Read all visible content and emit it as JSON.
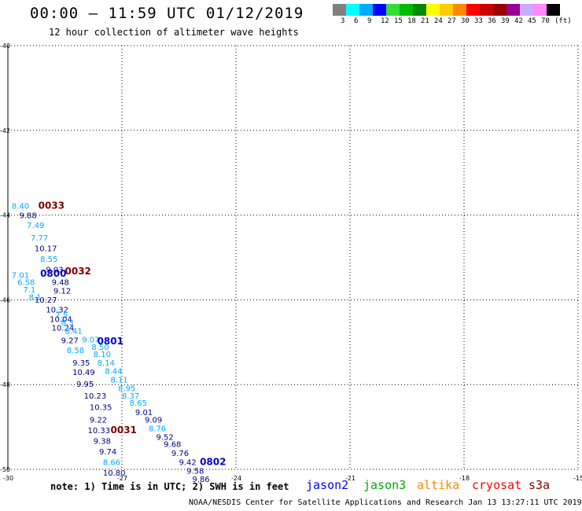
{
  "header": {
    "title": "00:00 – 11:59 UTC 01/12/2019",
    "subtitle": "12 hour collection of altimeter wave heights"
  },
  "legend": {
    "colors": [
      "#808080",
      "#00ffff",
      "#00aaff",
      "#0000ff",
      "#33dd33",
      "#00bb00",
      "#008800",
      "#ffff00",
      "#ffcc00",
      "#ff8800",
      "#ff0000",
      "#cc0000",
      "#990000",
      "#990099",
      "#ccaaff",
      "#ff88ff",
      "#000000"
    ],
    "labels": [
      "3",
      "6",
      "9",
      "12",
      "15",
      "18",
      "21",
      "24",
      "27",
      "30",
      "33",
      "36",
      "39",
      "42",
      "45",
      "70",
      "(ft)"
    ]
  },
  "map": {
    "lat_ticks": [
      "-40",
      "-42",
      "-44",
      "-46",
      "-48",
      "-50"
    ],
    "lon_ticks": [
      "-30",
      "-27",
      "-24",
      "-21",
      "-18",
      "-15"
    ]
  },
  "observations": [
    {
      "text": "8.40",
      "color": "#00aaff",
      "lon": -29.9,
      "lat": -43.85
    },
    {
      "text": "9.88",
      "color": "#000080",
      "lon": -29.7,
      "lat": -44.07
    },
    {
      "text": "7.49",
      "color": "#00aaff",
      "lon": -29.5,
      "lat": -44.3
    },
    {
      "text": "7.77",
      "color": "#00aaff",
      "lon": -29.4,
      "lat": -44.6
    },
    {
      "text": "10.17",
      "color": "#000080",
      "lon": -29.3,
      "lat": -44.85
    },
    {
      "text": "8.55",
      "color": "#00aaff",
      "lon": -29.15,
      "lat": -45.1
    },
    {
      "text": "9.03",
      "color": "#000080",
      "lon": -29.0,
      "lat": -45.35
    },
    {
      "text": "7.01",
      "color": "#00aaff",
      "lon": -29.9,
      "lat": -45.48
    },
    {
      "text": "6.58",
      "color": "#00aaff",
      "lon": -29.75,
      "lat": -45.65
    },
    {
      "text": "9.48",
      "color": "#000080",
      "lon": -28.85,
      "lat": -45.65
    },
    {
      "text": "7.1",
      "color": "#00aaff",
      "lon": -29.6,
      "lat": -45.83
    },
    {
      "text": "9.12",
      "color": "#000080",
      "lon": -28.8,
      "lat": -45.85
    },
    {
      "text": "8.1",
      "color": "#00aaff",
      "lon": -29.45,
      "lat": -46.0
    },
    {
      "text": "10.27",
      "color": "#000080",
      "lon": -29.3,
      "lat": -46.07
    },
    {
      "text": "10.32",
      "color": "#000080",
      "lon": -29.0,
      "lat": -46.3
    },
    {
      "text": "7.5",
      "color": "#00aaff",
      "lon": -28.75,
      "lat": -46.42
    },
    {
      "text": "10.04",
      "color": "#000080",
      "lon": -28.9,
      "lat": -46.52
    },
    {
      "text": "8.3",
      "color": "#00aaff",
      "lon": -28.6,
      "lat": -46.6
    },
    {
      "text": "10.24",
      "color": "#000080",
      "lon": -28.85,
      "lat": -46.73
    },
    {
      "text": "8.41",
      "color": "#00aaff",
      "lon": -28.5,
      "lat": -46.8
    },
    {
      "text": "9.27",
      "color": "#000080",
      "lon": -28.6,
      "lat": -47.02
    },
    {
      "text": "9.07",
      "color": "#00aaff",
      "lon": -28.05,
      "lat": -47.0
    },
    {
      "text": "8.50",
      "color": "#00aaff",
      "lon": -27.8,
      "lat": -47.18
    },
    {
      "text": "8.58",
      "color": "#00aaff",
      "lon": -28.45,
      "lat": -47.25
    },
    {
      "text": "8.10",
      "color": "#00aaff",
      "lon": -27.75,
      "lat": -47.35
    },
    {
      "text": "9.35",
      "color": "#000080",
      "lon": -28.3,
      "lat": -47.55
    },
    {
      "text": "8.14",
      "color": "#00aaff",
      "lon": -27.65,
      "lat": -47.55
    },
    {
      "text": "10.49",
      "color": "#000080",
      "lon": -28.3,
      "lat": -47.77
    },
    {
      "text": "8.44",
      "color": "#00aaff",
      "lon": -27.45,
      "lat": -47.75
    },
    {
      "text": "8.11",
      "color": "#00aaff",
      "lon": -27.3,
      "lat": -47.95
    },
    {
      "text": "9.95",
      "color": "#000080",
      "lon": -28.2,
      "lat": -48.05
    },
    {
      "text": "8.95",
      "color": "#00aaff",
      "lon": -27.1,
      "lat": -48.15
    },
    {
      "text": "8.37",
      "color": "#00aaff",
      "lon": -27.0,
      "lat": -48.33
    },
    {
      "text": "10.23",
      "color": "#000080",
      "lon": -28.0,
      "lat": -48.33
    },
    {
      "text": "8.65",
      "color": "#00aaff",
      "lon": -26.8,
      "lat": -48.5
    },
    {
      "text": "10.35",
      "color": "#000080",
      "lon": -27.85,
      "lat": -48.6
    },
    {
      "text": "9.01",
      "color": "#000080",
      "lon": -26.65,
      "lat": -48.72
    },
    {
      "text": "9.22",
      "color": "#000080",
      "lon": -27.85,
      "lat": -48.9
    },
    {
      "text": "9.09",
      "color": "#000080",
      "lon": -26.4,
      "lat": -48.9
    },
    {
      "text": "8.76",
      "color": "#00aaff",
      "lon": -26.3,
      "lat": -49.1
    },
    {
      "text": "10.33",
      "color": "#000080",
      "lon": -27.9,
      "lat": -49.15
    },
    {
      "text": "9.52",
      "color": "#000080",
      "lon": -26.1,
      "lat": -49.3
    },
    {
      "text": "9.38",
      "color": "#000080",
      "lon": -27.75,
      "lat": -49.4
    },
    {
      "text": "9.68",
      "color": "#000080",
      "lon": -25.9,
      "lat": -49.47
    },
    {
      "text": "9.74",
      "color": "#000080",
      "lon": -27.6,
      "lat": -49.65
    },
    {
      "text": "9.76",
      "color": "#000080",
      "lon": -25.7,
      "lat": -49.68
    },
    {
      "text": "8.66",
      "color": "#00aaff",
      "lon": -27.5,
      "lat": -49.9
    },
    {
      "text": "9.42",
      "color": "#000080",
      "lon": -25.5,
      "lat": -49.9
    },
    {
      "text": "10.80",
      "color": "#000080",
      "lon": -27.5,
      "lat": -50.15
    },
    {
      "text": "9.58",
      "color": "#000080",
      "lon": -25.3,
      "lat": -50.1
    },
    {
      "text": "9.86",
      "color": "#000080",
      "lon": -25.15,
      "lat": -50.3
    }
  ],
  "pass_times": [
    {
      "text": "0033",
      "color": "#800000",
      "lon": -29.2,
      "lat": -43.85
    },
    {
      "text": "0032",
      "color": "#800000",
      "lon": -28.5,
      "lat": -45.4
    },
    {
      "text": "0800",
      "color": "#0000cc",
      "lon": -29.15,
      "lat": -45.45
    },
    {
      "text": "0801",
      "color": "#0000cc",
      "lon": -27.65,
      "lat": -47.05
    },
    {
      "text": "0031",
      "color": "#800000",
      "lon": -27.3,
      "lat": -49.15
    },
    {
      "text": "0802",
      "color": "#0000cc",
      "lon": -24.95,
      "lat": -49.9
    }
  ],
  "footer": {
    "note": "note: 1) Time is in UTC; 2) SWH is in feet",
    "satellites": [
      {
        "name": "jason2",
        "color": "#0000ff"
      },
      {
        "name": "jason3",
        "color": "#00aa00"
      },
      {
        "name": "altika",
        "color": "#ff8800"
      },
      {
        "name": "cryosat",
        "color": "#ff0000"
      },
      {
        "name": "s3a",
        "color": "#800000"
      }
    ],
    "credit": "NOAA/NESDIS Center for Satellite Applications and Research   Jan 13 13:27:11 UTC 2019"
  }
}
